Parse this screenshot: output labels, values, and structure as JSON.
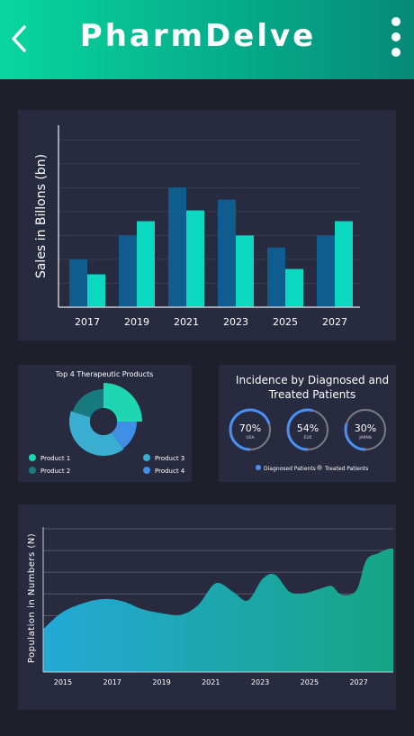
{
  "header": {
    "title": "PharmDelve",
    "back_icon": "chevron-left-icon",
    "menu_icon": "more-vertical-icon",
    "gradient": [
      "#08d69e",
      "#078a78"
    ]
  },
  "chart_data": [
    {
      "type": "bar",
      "title": "",
      "xlabel": "",
      "ylabel": "Sales in Billons (bn)",
      "categories": [
        "2017",
        "2019",
        "2021",
        "2023",
        "2025",
        "2027"
      ],
      "series": [
        {
          "values": [
            4,
            6,
            10,
            9,
            5,
            6
          ],
          "color": "#0f5c8f"
        },
        {
          "values": [
            2.75,
            7.2,
            8.1,
            6,
            3.2,
            7.2
          ],
          "color": "#0bd9bf"
        }
      ],
      "ylim": [
        0,
        15
      ],
      "grid": true,
      "legend": "none"
    },
    {
      "type": "pie",
      "title": "Top 4 Therapeutic Products",
      "series": [
        {
          "name": "Product 1",
          "value": 25,
          "color": "#1ed6b1"
        },
        {
          "name": "Product 4",
          "value": 15,
          "color": "#3f8fe6"
        },
        {
          "name": "Product 3",
          "value": 40,
          "color": "#3aaed0"
        },
        {
          "name": "Product 2",
          "value": 20,
          "color": "#167a7f"
        }
      ],
      "legend": "bottom"
    },
    {
      "type": "pie",
      "title": "Incidence by Diagnosed and Treated Patients",
      "series": [
        {
          "name": "Diagnosed Patients",
          "color": "#4a8ff3"
        },
        {
          "name": "Treated Patients",
          "color": "#7a7a82"
        }
      ],
      "gauges": [
        {
          "label": "70%",
          "sublabel": "USA",
          "value": 70
        },
        {
          "label": "54%",
          "sublabel": "EU5",
          "value": 54
        },
        {
          "label": "30%",
          "sublabel": "JAPAN",
          "value": 30
        }
      ],
      "legend": "bottom"
    },
    {
      "type": "area",
      "title": "",
      "xlabel": "",
      "ylabel": "Population in Numbers (N)",
      "x_ticks": [
        "2015",
        "2017",
        "2019",
        "2021",
        "2023",
        "2025",
        "2027"
      ],
      "xlim": [
        2014.2,
        2028.4
      ],
      "ylim": [
        0,
        100
      ],
      "x": [
        2014.2,
        2015,
        2016,
        2016.8,
        2017.5,
        2018.2,
        2019,
        2019.8,
        2020.5,
        2021.2,
        2021.9,
        2022.5,
        2023.1,
        2023.6,
        2024.2,
        2024.8,
        2025.4,
        2025.9,
        2026.3,
        2026.9,
        2027.3,
        2027.8,
        2028.2,
        2028.4
      ],
      "y": [
        30,
        42,
        49,
        51,
        49,
        44,
        41,
        40,
        47,
        62,
        56,
        50,
        65,
        68,
        56,
        55,
        58,
        60,
        54,
        57,
        78,
        83,
        86,
        86
      ],
      "gradient": [
        "#23a9d6",
        "#15a585"
      ],
      "grid": true
    }
  ]
}
